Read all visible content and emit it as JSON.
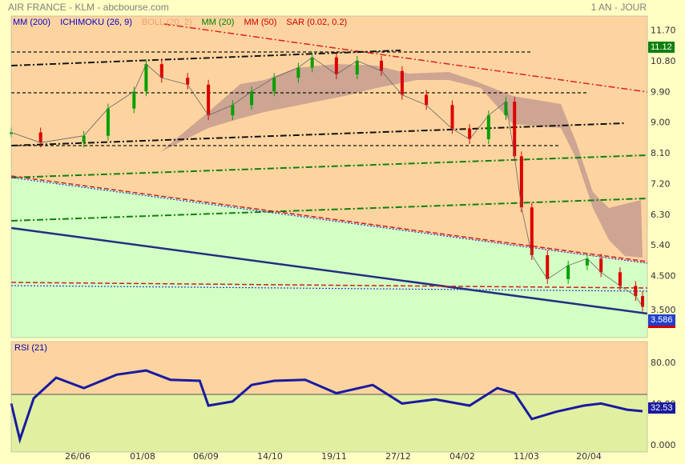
{
  "header": {
    "title": "AIR FRANCE - KLM - abcbourse.com",
    "period": "1 AN - JOUR"
  },
  "legend": [
    {
      "label": "MM (200)",
      "color": "#0000cc"
    },
    {
      "label": "ICHIMOKU (26, 9)",
      "color": "#0000cc"
    },
    {
      "label": "BOLL (20, 2)",
      "color": "#f0a070"
    },
    {
      "label": "MM (20)",
      "color": "#008000"
    },
    {
      "label": "MM (50)",
      "color": "#cc0000"
    },
    {
      "label": "SAR (0.02, 0.2)",
      "color": "#cc0000"
    }
  ],
  "price_tags": {
    "last_high": "11.12",
    "last_close": "3.586",
    "rsi_value": "32.53"
  },
  "colors": {
    "background": "#ffffc4",
    "upper_zone": "#fdd4a0",
    "lower_zone": "#d4ffc4",
    "cloud": "#c8a090",
    "candle_up": "#00a000",
    "candle_down": "#dd0000",
    "rsi_line": "#1a1aa0"
  },
  "chart_data": [
    {
      "type": "candlestick",
      "title": "",
      "x_ticks": [
        "26/06",
        "01/08",
        "06/09",
        "14/10",
        "19/11",
        "27/12",
        "04/02",
        "11/03",
        "20/04"
      ],
      "y_ticks": [
        "11.70",
        "10.80",
        "9.90",
        "9.00",
        "8.10",
        "7.20",
        "6.30",
        "5.40",
        "4.500",
        "3.500"
      ],
      "ylim": [
        3.2,
        11.9
      ],
      "close_series": [
        {
          "x": "2023-05-15",
          "y": 8.7
        },
        {
          "x": "2023-06-01",
          "y": 8.4
        },
        {
          "x": "2023-06-26",
          "y": 8.6
        },
        {
          "x": "2023-07-10",
          "y": 9.4
        },
        {
          "x": "2023-07-25",
          "y": 9.9
        },
        {
          "x": "2023-08-01",
          "y": 10.7
        },
        {
          "x": "2023-08-10",
          "y": 10.3
        },
        {
          "x": "2023-08-25",
          "y": 10.1
        },
        {
          "x": "2023-09-06",
          "y": 9.2
        },
        {
          "x": "2023-09-20",
          "y": 9.5
        },
        {
          "x": "2023-10-01",
          "y": 9.9
        },
        {
          "x": "2023-10-14",
          "y": 10.3
        },
        {
          "x": "2023-10-28",
          "y": 10.6
        },
        {
          "x": "2023-11-05",
          "y": 10.9
        },
        {
          "x": "2023-11-19",
          "y": 10.4
        },
        {
          "x": "2023-12-01",
          "y": 10.8
        },
        {
          "x": "2023-12-15",
          "y": 10.5
        },
        {
          "x": "2023-12-27",
          "y": 9.8
        },
        {
          "x": "2024-01-10",
          "y": 9.5
        },
        {
          "x": "2024-01-25",
          "y": 8.8
        },
        {
          "x": "2024-02-04",
          "y": 8.5
        },
        {
          "x": "2024-02-15",
          "y": 9.2
        },
        {
          "x": "2024-02-25",
          "y": 9.6
        },
        {
          "x": "2024-03-01",
          "y": 8.0
        },
        {
          "x": "2024-03-05",
          "y": 6.5
        },
        {
          "x": "2024-03-11",
          "y": 5.1
        },
        {
          "x": "2024-03-20",
          "y": 4.4
        },
        {
          "x": "2024-04-01",
          "y": 4.8
        },
        {
          "x": "2024-04-12",
          "y": 5.0
        },
        {
          "x": "2024-04-20",
          "y": 4.6
        },
        {
          "x": "2024-05-01",
          "y": 4.2
        },
        {
          "x": "2024-05-10",
          "y": 3.9
        },
        {
          "x": "2024-05-14",
          "y": 3.586
        }
      ]
    },
    {
      "type": "line",
      "title": "RSI (21)",
      "y_ticks": [
        "80.00",
        "40.00",
        "0.000"
      ],
      "ylim": [
        0,
        100
      ],
      "series": [
        {
          "x": "2023-05-15",
          "y": 40
        },
        {
          "x": "2023-05-20",
          "y": 5
        },
        {
          "x": "2023-05-28",
          "y": 45
        },
        {
          "x": "2023-06-10",
          "y": 65
        },
        {
          "x": "2023-06-26",
          "y": 55
        },
        {
          "x": "2023-07-15",
          "y": 68
        },
        {
          "x": "2023-08-01",
          "y": 72
        },
        {
          "x": "2023-08-15",
          "y": 63
        },
        {
          "x": "2023-09-01",
          "y": 62
        },
        {
          "x": "2023-09-06",
          "y": 38
        },
        {
          "x": "2023-09-20",
          "y": 42
        },
        {
          "x": "2023-10-01",
          "y": 58
        },
        {
          "x": "2023-10-14",
          "y": 62
        },
        {
          "x": "2023-11-01",
          "y": 63
        },
        {
          "x": "2023-11-19",
          "y": 50
        },
        {
          "x": "2023-12-10",
          "y": 58
        },
        {
          "x": "2023-12-27",
          "y": 40
        },
        {
          "x": "2024-01-15",
          "y": 44
        },
        {
          "x": "2024-02-04",
          "y": 38
        },
        {
          "x": "2024-02-20",
          "y": 55
        },
        {
          "x": "2024-03-01",
          "y": 50
        },
        {
          "x": "2024-03-11",
          "y": 25
        },
        {
          "x": "2024-03-25",
          "y": 32
        },
        {
          "x": "2024-04-10",
          "y": 38
        },
        {
          "x": "2024-04-20",
          "y": 40
        },
        {
          "x": "2024-05-05",
          "y": 34
        },
        {
          "x": "2024-05-14",
          "y": 32.53
        }
      ]
    }
  ]
}
